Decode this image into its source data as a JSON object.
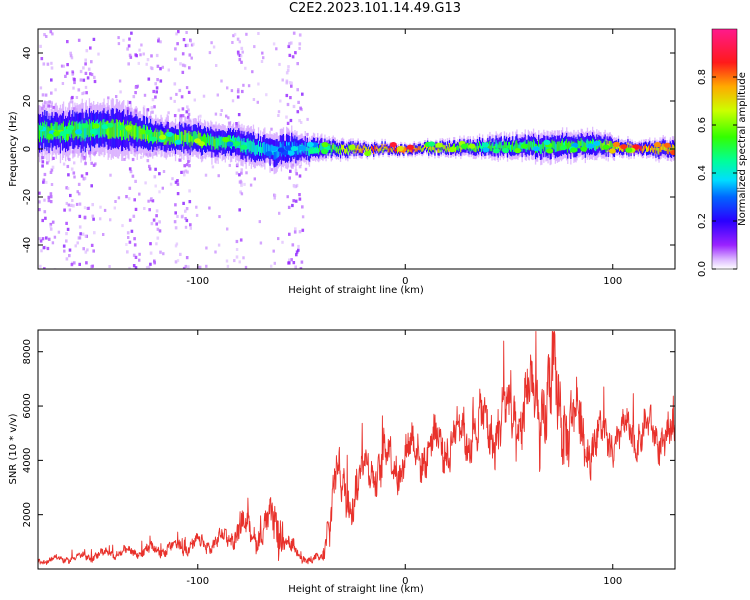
{
  "title": "C2E2.2023.101.14.49.G13",
  "colors": {
    "snr_line": "#e8312b",
    "axis": "#000000"
  },
  "chart_data": [
    {
      "type": "heatmap",
      "xlabel": "Height of straight line (km)",
      "ylabel": "Frequency (Hz)",
      "xlim": [
        -177,
        130
      ],
      "ylim": [
        -50,
        50
      ],
      "x_ticks": [
        -100,
        0,
        100
      ],
      "y_ticks": [
        -40,
        -20,
        0,
        20,
        40
      ],
      "grid": false,
      "colorbar": {
        "label": "Normalized spectral amplitude",
        "range": [
          0,
          1
        ],
        "ticks": [
          "0.0",
          "0.2",
          "0.4",
          "0.6",
          "0.8"
        ],
        "colormap": "gist_rainbow_r"
      },
      "ridge": {
        "description_points_x": [
          -175,
          -150,
          -135,
          -120,
          -100,
          -80,
          -65,
          -55,
          -40,
          -20,
          0,
          40,
          70,
          90,
          110,
          130
        ],
        "center_hz": [
          7,
          8,
          8,
          5,
          4,
          2,
          -1,
          0,
          0,
          0,
          0,
          1,
          1,
          2,
          0,
          0
        ],
        "halfwidth_hz": [
          7,
          7,
          7,
          5,
          5,
          5,
          5,
          5,
          3,
          2,
          1.5,
          3,
          4,
          4,
          2,
          3
        ],
        "amplitude": [
          0.55,
          0.55,
          0.6,
          0.6,
          0.6,
          0.5,
          0.4,
          0.35,
          0.55,
          0.8,
          0.85,
          0.55,
          0.55,
          0.55,
          0.9,
          0.75
        ]
      },
      "scatter_bands_x": [
        [
          -177,
          -170
        ],
        [
          -165,
          -160
        ],
        [
          -158,
          -150
        ],
        [
          -135,
          -130
        ],
        [
          -125,
          -118
        ],
        [
          -112,
          -104
        ],
        [
          -82,
          -79
        ],
        [
          -58,
          -50
        ]
      ]
    },
    {
      "type": "line",
      "xlabel": "Height of straight line (km)",
      "ylabel": "SNR (10 * v/v)",
      "xlim": [
        -177,
        130
      ],
      "ylim": [
        0,
        8800
      ],
      "x_ticks": [
        -100,
        0,
        100
      ],
      "y_ticks": [
        2000,
        4000,
        6000,
        8000
      ],
      "grid": false,
      "series": [
        {
          "x": [
            -177,
            -170,
            -160,
            -150,
            -140,
            -130,
            -120,
            -110,
            -100,
            -90,
            -85,
            -80,
            -75,
            -70,
            -65,
            -60,
            -58,
            -55,
            -50,
            -45,
            -40,
            -37,
            -35,
            -33,
            -30,
            -25,
            -20,
            -15,
            -10,
            -5,
            0,
            5,
            10,
            20,
            30,
            40,
            50,
            60,
            65,
            70,
            75,
            80,
            85,
            90,
            95,
            100,
            110,
            120,
            130
          ],
          "y": [
            300,
            350,
            400,
            500,
            600,
            650,
            700,
            800,
            900,
            1000,
            1200,
            1500,
            1400,
            1300,
            1600,
            1900,
            1000,
            700,
            500,
            300,
            350,
            2000,
            3000,
            3500,
            2500,
            3000,
            3500,
            3800,
            4000,
            3800,
            4200,
            4300,
            4400,
            4700,
            5000,
            5200,
            5500,
            6000,
            6200,
            6300,
            6000,
            5500,
            5000,
            4700,
            4800,
            4800,
            5000,
            5000,
            4800
          ],
          "noise": [
            150,
            150,
            150,
            200,
            200,
            250,
            250,
            300,
            350,
            400,
            500,
            600,
            600,
            600,
            800,
            1500,
            500,
            400,
            250,
            200,
            250,
            1400,
            1200,
            1100,
            1200,
            1100,
            1000,
            1000,
            1100,
            1000,
            1000,
            1000,
            1000,
            1100,
            1200,
            1300,
            1500,
            1900,
            2100,
            2200,
            2000,
            1700,
            1500,
            1100,
            900,
            900,
            900,
            900,
            900
          ]
        }
      ]
    }
  ]
}
